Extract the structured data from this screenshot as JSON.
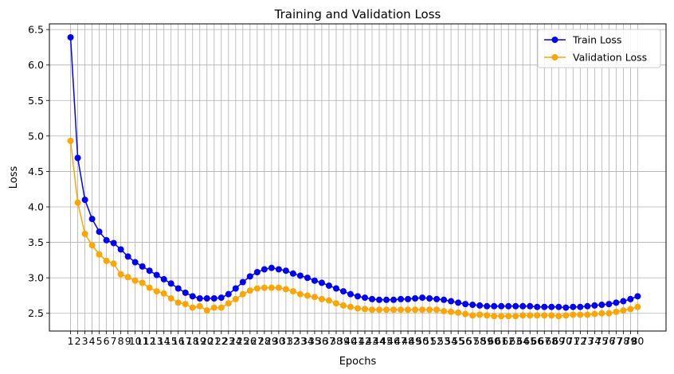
{
  "chart_data": {
    "type": "line",
    "title": "Training and Validation Loss",
    "xlabel": "Epochs",
    "ylabel": "Loss",
    "ylim": [
      2.25,
      6.58
    ],
    "yticks": [
      2.5,
      3.0,
      3.5,
      4.0,
      4.5,
      5.0,
      5.5,
      6.0,
      6.5
    ],
    "grid": true,
    "legend_position": "top-right",
    "x": [
      1,
      2,
      3,
      4,
      5,
      6,
      7,
      8,
      9,
      10,
      11,
      12,
      13,
      14,
      15,
      16,
      17,
      18,
      19,
      20,
      21,
      22,
      23,
      24,
      25,
      26,
      27,
      28,
      29,
      30,
      31,
      32,
      33,
      34,
      35,
      36,
      37,
      38,
      39,
      40,
      41,
      42,
      43,
      44,
      45,
      46,
      47,
      48,
      49,
      50,
      51,
      52,
      53,
      54,
      55,
      56,
      57,
      58,
      59,
      60,
      61,
      62,
      63,
      64,
      65,
      66,
      67,
      68,
      69,
      70,
      71,
      72,
      73,
      74,
      75,
      76,
      77,
      78,
      79,
      80
    ],
    "series": [
      {
        "name": "Train Loss",
        "color": "#0000ff",
        "values": [
          6.39,
          4.69,
          4.1,
          3.83,
          3.65,
          3.53,
          3.49,
          3.4,
          3.3,
          3.22,
          3.16,
          3.1,
          3.04,
          2.98,
          2.92,
          2.85,
          2.79,
          2.74,
          2.71,
          2.71,
          2.71,
          2.72,
          2.77,
          2.85,
          2.94,
          3.02,
          3.08,
          3.12,
          3.14,
          3.12,
          3.1,
          3.06,
          3.03,
          3.0,
          2.96,
          2.93,
          2.89,
          2.85,
          2.81,
          2.77,
          2.74,
          2.72,
          2.7,
          2.69,
          2.69,
          2.69,
          2.7,
          2.7,
          2.71,
          2.72,
          2.71,
          2.7,
          2.69,
          2.67,
          2.65,
          2.63,
          2.62,
          2.61,
          2.6,
          2.6,
          2.6,
          2.6,
          2.6,
          2.6,
          2.6,
          2.59,
          2.59,
          2.59,
          2.59,
          2.58,
          2.59,
          2.59,
          2.6,
          2.61,
          2.62,
          2.63,
          2.65,
          2.67,
          2.7,
          2.74
        ]
      },
      {
        "name": "Validation Loss",
        "color": "#ffa500",
        "values": [
          4.93,
          4.06,
          3.62,
          3.46,
          3.33,
          3.24,
          3.2,
          3.05,
          3.01,
          2.96,
          2.93,
          2.86,
          2.81,
          2.78,
          2.71,
          2.65,
          2.63,
          2.58,
          2.6,
          2.54,
          2.58,
          2.58,
          2.64,
          2.7,
          2.77,
          2.82,
          2.85,
          2.86,
          2.86,
          2.86,
          2.84,
          2.81,
          2.77,
          2.75,
          2.73,
          2.7,
          2.68,
          2.64,
          2.61,
          2.59,
          2.57,
          2.56,
          2.55,
          2.55,
          2.55,
          2.55,
          2.55,
          2.55,
          2.55,
          2.55,
          2.55,
          2.55,
          2.53,
          2.52,
          2.51,
          2.49,
          2.47,
          2.48,
          2.47,
          2.46,
          2.46,
          2.46,
          2.46,
          2.47,
          2.47,
          2.47,
          2.47,
          2.47,
          2.46,
          2.47,
          2.48,
          2.48,
          2.48,
          2.49,
          2.5,
          2.5,
          2.52,
          2.54,
          2.56,
          2.59
        ]
      }
    ]
  }
}
